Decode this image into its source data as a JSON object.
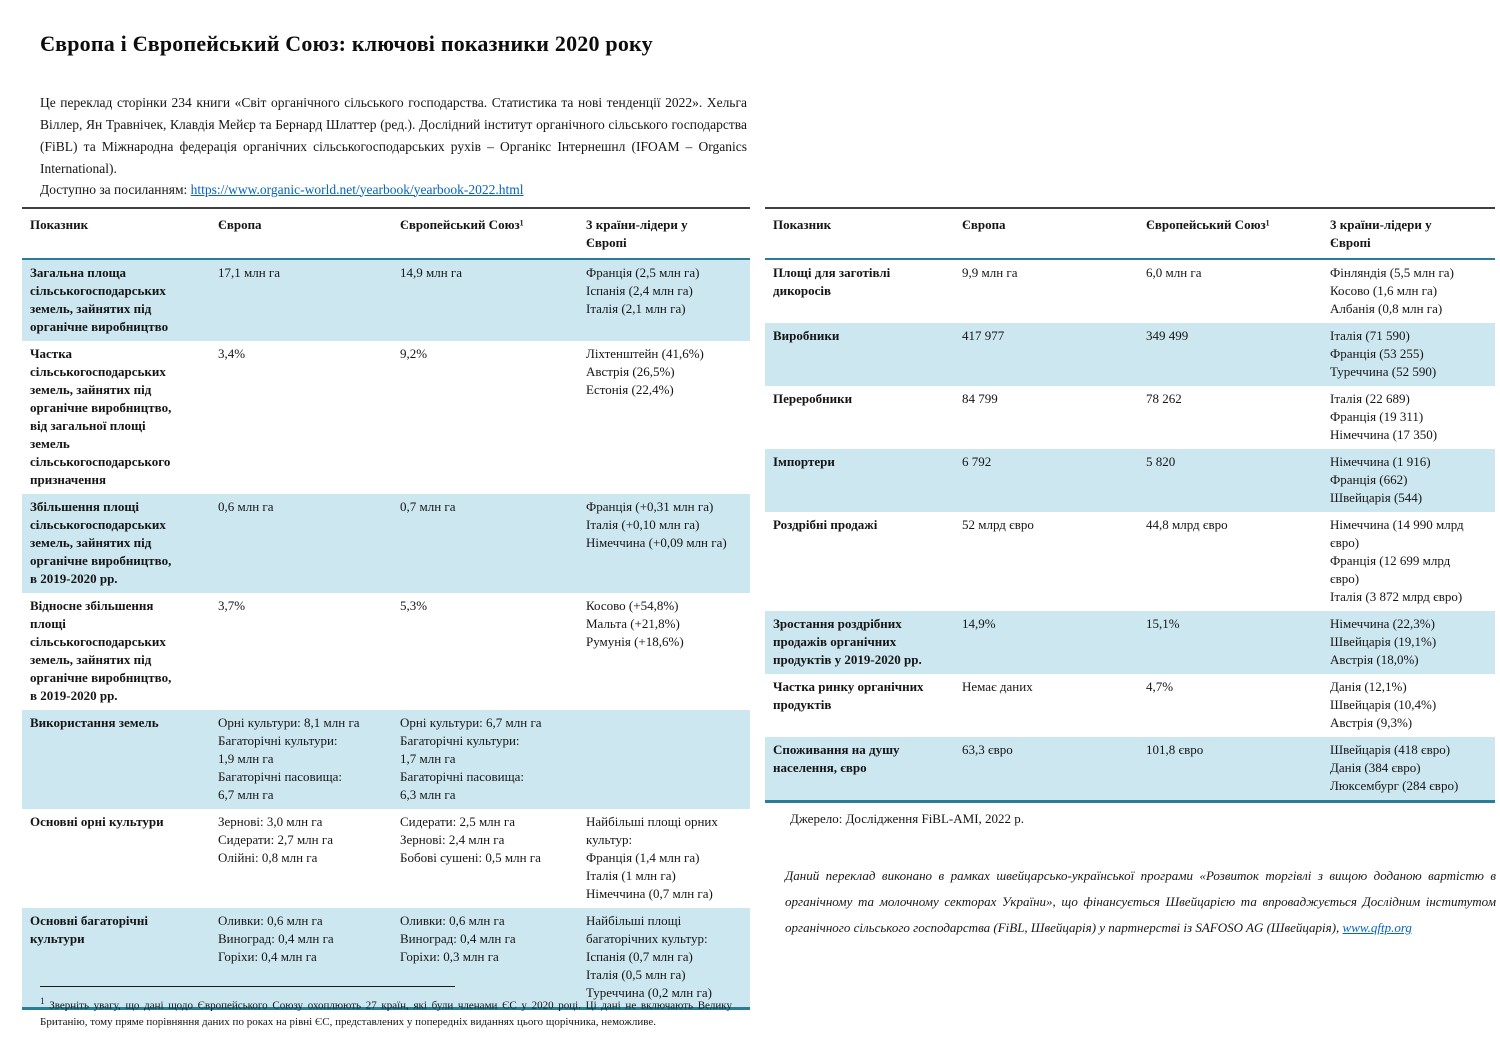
{
  "colors": {
    "row_highlight": "#cde7f0",
    "table_border_teal": "#2a7d99",
    "table_border_dark": "#3f3f44",
    "link": "#0563c1"
  },
  "page": {
    "title": "Європа і Європейський Союз: ключові показники 2020 року",
    "intro": "Це переклад сторінки 234 книги «Світ органічного сільського господарства. Статистика та нові тенденції 2022». Хельга Віллер, Ян Травнічек, Клавдія Мейєр та Бернард Шлаттер (ред.). Дослідний інститут органічного сільського господарства (FiBL) та Міжнародна федерація органічних сільськогосподарських рухів – Органікс Інтернешнл (IFOAM – Organics International).",
    "access_label": "Доступно за посиланням: ",
    "access_link": "https://www.organic-world.net/yearbook/yearbook-2022.html",
    "source": "Джерело: Дослідження FiBL-AMI, 2022 р.",
    "program_text": "Даний переклад виконано в рамках швейцарсько-української програми «Розвиток торгівлі з вищою доданою вартістю в органічному та молочному секторах України», що фінансується Швейцарією та впроваджується Дослідним інститутом органічного сільського господарства (FiBL, Швейцарія) у партнерстві із SAFOSO AG (Швейцарія), ",
    "program_link": "www.qftp.org",
    "footnote_marker": "1",
    "footnote_text": "Зверніть увагу, що дані щодо Європейського Союзу охоплюють 27 країн, які були членами ЄС у 2020 році. Ці дані не включають Велику Британію, тому пряме порівняння даних по роках на рівні ЄС, представлених у попередніх виданнях цього щорічника, неможливе."
  },
  "left_table": {
    "headers": [
      "Показник",
      "Європа",
      "Європейський Союз¹",
      "3 країни-лідери у\nЄвропі"
    ],
    "rows": [
      {
        "highlight": true,
        "cells": [
          "Загальна площа\nсільськогосподарських\nземель, зайнятих під\nорганічне виробництво",
          "17,1 млн га",
          "14,9 млн га",
          "Франція (2,5 млн га)\nІспанія (2,4 млн га)\nІталія (2,1 млн га)"
        ]
      },
      {
        "highlight": false,
        "cells": [
          "Частка\nсільськогосподарських\nземель, зайнятих під\nорганічне виробництво,\nвід загальної площі\nземель\nсільськогосподарського\nпризначення",
          "3,4%",
          "9,2%",
          "Ліхтенштейн (41,6%)\nАвстрія (26,5%)\nЕстонія (22,4%)"
        ]
      },
      {
        "highlight": true,
        "cells": [
          "Збільшення площі\nсільськогосподарських\nземель, зайнятих під\nорганічне виробництво,\nв 2019-2020 рр.",
          "0,6 млн га",
          "0,7 млн га",
          "Франція (+0,31 млн га)\nІталія (+0,10 млн га)\nНімеччина (+0,09 млн га)"
        ]
      },
      {
        "highlight": false,
        "cells": [
          "Відносне збільшення\nплощі\nсільськогосподарських\nземель, зайнятих під\nорганічне виробництво,\nв 2019-2020 рр.",
          "3,7%",
          "5,3%",
          "Косово (+54,8%)\nМальта (+21,8%)\nРумунія (+18,6%)"
        ]
      },
      {
        "highlight": true,
        "cells": [
          "Використання земель",
          "Орні культури: 8,1 млн га\nБагаторічні культури:\n1,9 млн га\nБагаторічні пасовища:\n6,7 млн га",
          "Орні культури: 6,7 млн га\nБагаторічні культури:\n1,7 млн га\nБагаторічні пасовища:\n6,3 млн га",
          ""
        ]
      },
      {
        "highlight": false,
        "cells": [
          "Основні орні культури",
          "Зернові: 3,0 млн га\nСидерати: 2,7 млн га\nОлійні: 0,8 млн га",
          "Сидерати: 2,5 млн га\nЗернові: 2,4 млн га\nБобові сушені: 0,5 млн га",
          "Найбільші площі орних\nкультур:\nФранція (1,4 млн га)\nІталія (1 млн га)\nНімеччина (0,7 млн га)"
        ]
      },
      {
        "highlight": true,
        "cells": [
          "Основні багаторічні\nкультури",
          "Оливки: 0,6 млн га\nВиноград: 0,4 млн га\nГоріхи: 0,4 млн га",
          "Оливки: 0,6 млн га\nВиноград: 0,4 млн га\nГоріхи: 0,3 млн га",
          "Найбільші площі\nбагаторічних культур:\nІспанія (0,7 млн га)\nІталія (0,5 млн га)\nТуреччина (0,2 млн га)"
        ]
      }
    ]
  },
  "right_table": {
    "headers": [
      "Показник",
      "Європа",
      "Європейський Союз¹",
      "3 країни-лідери у\nЄвропі"
    ],
    "rows": [
      {
        "highlight": false,
        "cells": [
          "Площі для заготівлі\nдикоросів",
          "9,9 млн га",
          "6,0 млн га",
          "Фінляндія (5,5 млн га)\nКосово (1,6 млн га)\nАлбанія (0,8 млн га)"
        ]
      },
      {
        "highlight": true,
        "cells": [
          "Виробники",
          "417 977",
          "349 499",
          "Італія (71 590)\nФранція (53 255)\nТуреччина (52 590)"
        ]
      },
      {
        "highlight": false,
        "cells": [
          "Переробники",
          "84 799",
          "78 262",
          "Італія (22 689)\nФранція (19 311)\nНімеччина (17 350)"
        ]
      },
      {
        "highlight": true,
        "cells": [
          "Імпортери",
          "6 792",
          "5 820",
          "Німеччина (1 916)\nФранція (662)\nШвейцарія (544)"
        ]
      },
      {
        "highlight": false,
        "cells": [
          "Роздрібні продажі",
          "52 млрд євро",
          "44,8 млрд євро",
          "Німеччина (14 990 млрд\nєвро)\nФранція (12 699 млрд\nєвро)\nІталія (3 872 млрд євро)"
        ]
      },
      {
        "highlight": true,
        "cells": [
          "Зростання роздрібних\nпродажів органічних\nпродуктів у 2019-2020 рр.",
          "14,9%",
          "15,1%",
          "Німеччина (22,3%)\nШвейцарія (19,1%)\nАвстрія (18,0%)"
        ]
      },
      {
        "highlight": false,
        "cells": [
          "Частка ринку органічних\nпродуктів",
          "Немає даних",
          "4,7%",
          "Данія (12,1%)\nШвейцарія (10,4%)\nАвстрія (9,3%)"
        ]
      },
      {
        "highlight": true,
        "cells": [
          "Споживання на душу\nнаселення, євро",
          "63,3 євро",
          "101,8 євро",
          "Швейцарія (418 євро)\nДанія (384 євро)\nЛюксембург (284 євро)"
        ]
      }
    ]
  }
}
